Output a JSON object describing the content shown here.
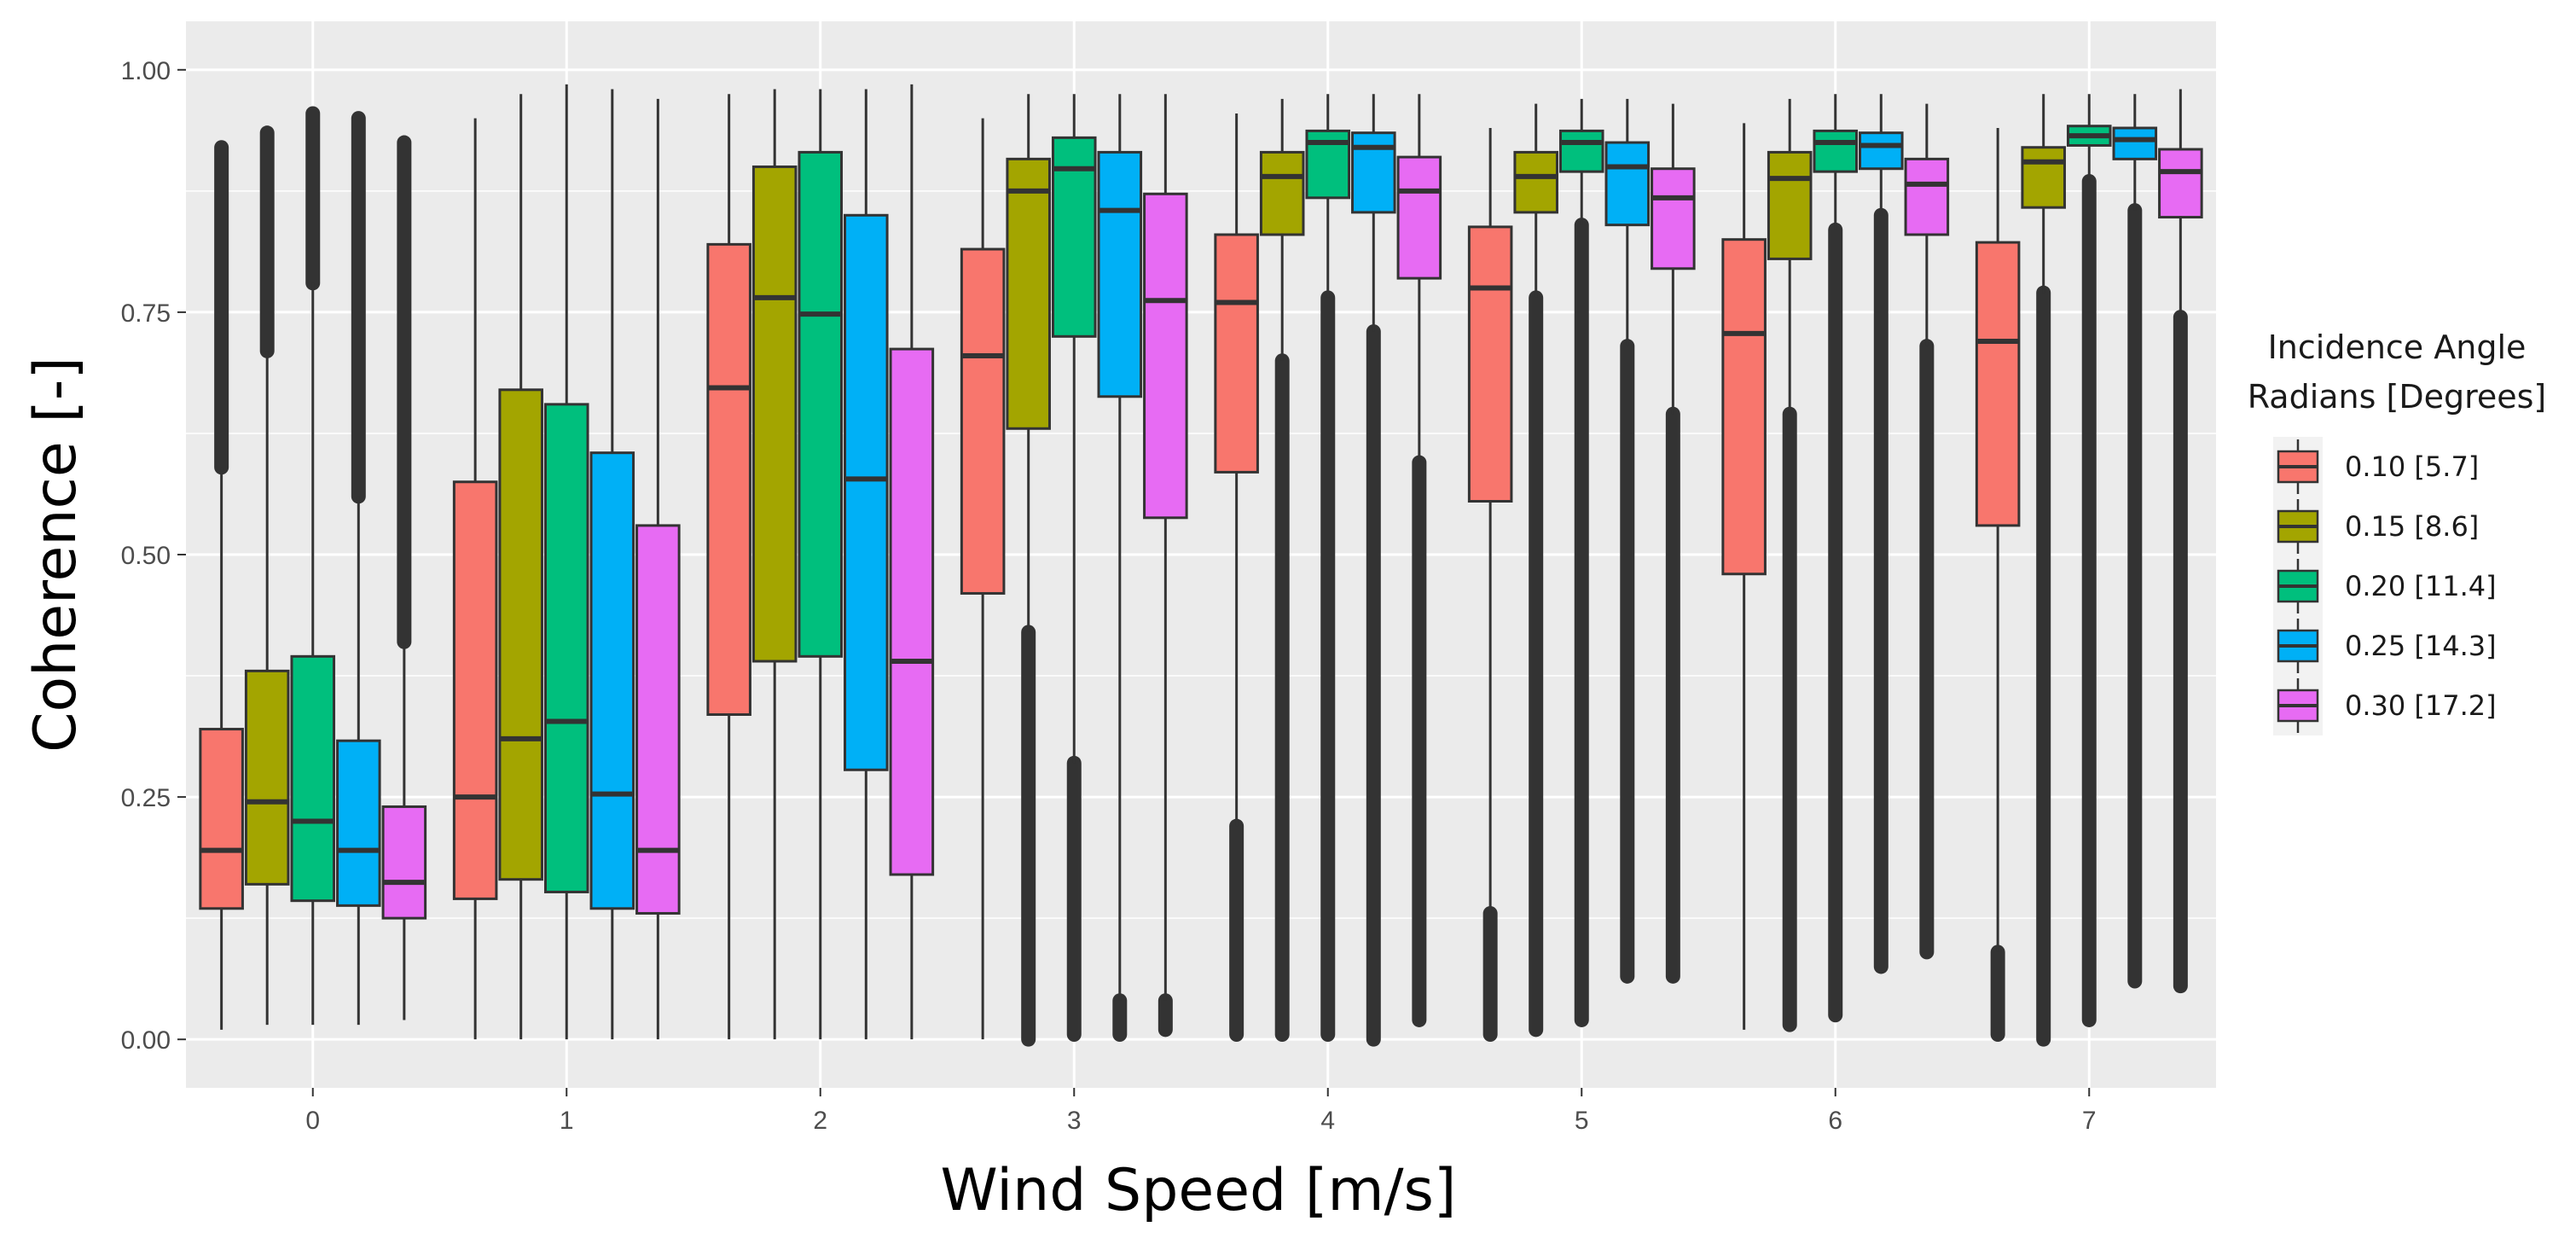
{
  "chart_data": {
    "type": "boxplot",
    "title": "",
    "xlabel": "Wind Speed [m/s]",
    "ylabel": "Coherence [-]",
    "ylim": [
      -0.05,
      1.05
    ],
    "y_ticks": [
      "0.00",
      "0.25",
      "0.50",
      "0.75",
      "1.00"
    ],
    "y_tick_values": [
      0,
      0.25,
      0.5,
      0.75,
      1.0
    ],
    "categories": [
      "0",
      "1",
      "2",
      "3",
      "4",
      "5",
      "6",
      "7"
    ],
    "grid": true,
    "legend": {
      "title_line1": "Incidence Angle",
      "title_line2": "Radians [Degrees]",
      "position": "right"
    },
    "colors": {
      "panel_bg": "#ebebeb",
      "grid": "#ffffff",
      "box_outline": "#333333",
      "outlier": "#333333"
    },
    "series": [
      {
        "name": "0.10 [5.7]",
        "color": "#F8766D",
        "boxes": [
          {
            "min": 0.01,
            "q1": 0.135,
            "median": 0.195,
            "q3": 0.32,
            "max": 0.59,
            "outliers_from": 0.59,
            "outliers_to": 0.92
          },
          {
            "min": 0.0,
            "q1": 0.145,
            "median": 0.25,
            "q3": 0.575,
            "max": 0.95
          },
          {
            "min": 0.0,
            "q1": 0.335,
            "median": 0.672,
            "q3": 0.82,
            "max": 0.975
          },
          {
            "min": 0.0,
            "q1": 0.46,
            "median": 0.705,
            "q3": 0.815,
            "max": 0.95
          },
          {
            "min": 0.22,
            "q1": 0.585,
            "median": 0.76,
            "q3": 0.83,
            "max": 0.955,
            "outliers_from": 0.005,
            "outliers_to": 0.22
          },
          {
            "min": 0.13,
            "q1": 0.555,
            "median": 0.775,
            "q3": 0.838,
            "max": 0.94,
            "outliers_from": 0.005,
            "outliers_to": 0.13
          },
          {
            "min": 0.01,
            "q1": 0.48,
            "median": 0.728,
            "q3": 0.825,
            "max": 0.945
          },
          {
            "min": 0.09,
            "q1": 0.53,
            "median": 0.72,
            "q3": 0.822,
            "max": 0.94,
            "outliers_from": 0.005,
            "outliers_to": 0.09
          }
        ]
      },
      {
        "name": "0.15 [8.6]",
        "color": "#A3A500",
        "boxes": [
          {
            "min": 0.015,
            "q1": 0.16,
            "median": 0.245,
            "q3": 0.38,
            "max": 0.71,
            "outliers_from": 0.71,
            "outliers_to": 0.935
          },
          {
            "min": 0.0,
            "q1": 0.165,
            "median": 0.31,
            "q3": 0.67,
            "max": 0.975
          },
          {
            "min": 0.0,
            "q1": 0.39,
            "median": 0.765,
            "q3": 0.9,
            "max": 0.98
          },
          {
            "min": 0.42,
            "q1": 0.63,
            "median": 0.875,
            "q3": 0.908,
            "max": 0.975,
            "outliers_from": 0.0,
            "outliers_to": 0.42
          },
          {
            "min": 0.7,
            "q1": 0.83,
            "median": 0.89,
            "q3": 0.915,
            "max": 0.97,
            "outliers_from": 0.005,
            "outliers_to": 0.7
          },
          {
            "min": 0.765,
            "q1": 0.853,
            "median": 0.89,
            "q3": 0.915,
            "max": 0.965,
            "outliers_from": 0.01,
            "outliers_to": 0.765
          },
          {
            "min": 0.645,
            "q1": 0.805,
            "median": 0.888,
            "q3": 0.915,
            "max": 0.97,
            "outliers_from": 0.015,
            "outliers_to": 0.645
          },
          {
            "min": 0.77,
            "q1": 0.858,
            "median": 0.905,
            "q3": 0.92,
            "max": 0.975,
            "outliers_from": 0.0,
            "outliers_to": 0.77
          }
        ]
      },
      {
        "name": "0.20 [11.4]",
        "color": "#00BF7D",
        "boxes": [
          {
            "min": 0.015,
            "q1": 0.143,
            "median": 0.225,
            "q3": 0.395,
            "max": 0.78,
            "outliers_from": 0.78,
            "outliers_to": 0.955
          },
          {
            "min": 0.0,
            "q1": 0.152,
            "median": 0.328,
            "q3": 0.655,
            "max": 0.985
          },
          {
            "min": 0.0,
            "q1": 0.395,
            "median": 0.748,
            "q3": 0.915,
            "max": 0.98
          },
          {
            "min": 0.285,
            "q1": 0.725,
            "median": 0.898,
            "q3": 0.93,
            "max": 0.975,
            "outliers_from": 0.005,
            "outliers_to": 0.285
          },
          {
            "min": 0.765,
            "q1": 0.868,
            "median": 0.925,
            "q3": 0.937,
            "max": 0.975,
            "outliers_from": 0.005,
            "outliers_to": 0.765
          },
          {
            "min": 0.84,
            "q1": 0.895,
            "median": 0.925,
            "q3": 0.937,
            "max": 0.97,
            "outliers_from": 0.02,
            "outliers_to": 0.84
          },
          {
            "min": 0.835,
            "q1": 0.895,
            "median": 0.925,
            "q3": 0.937,
            "max": 0.975,
            "outliers_from": 0.025,
            "outliers_to": 0.835
          },
          {
            "min": 0.885,
            "q1": 0.922,
            "median": 0.932,
            "q3": 0.942,
            "max": 0.975,
            "outliers_from": 0.02,
            "outliers_to": 0.885
          }
        ]
      },
      {
        "name": "0.25 [14.3]",
        "color": "#00B0F6",
        "boxes": [
          {
            "min": 0.015,
            "q1": 0.138,
            "median": 0.195,
            "q3": 0.308,
            "max": 0.56,
            "outliers_from": 0.56,
            "outliers_to": 0.95
          },
          {
            "min": 0.0,
            "q1": 0.135,
            "median": 0.253,
            "q3": 0.605,
            "max": 0.98
          },
          {
            "min": 0.0,
            "q1": 0.278,
            "median": 0.578,
            "q3": 0.85,
            "max": 0.98
          },
          {
            "min": 0.04,
            "q1": 0.663,
            "median": 0.855,
            "q3": 0.915,
            "max": 0.975,
            "outliers_from": 0.005,
            "outliers_to": 0.04
          },
          {
            "min": 0.73,
            "q1": 0.853,
            "median": 0.92,
            "q3": 0.935,
            "max": 0.975,
            "outliers_from": 0.0,
            "outliers_to": 0.73
          },
          {
            "min": 0.715,
            "q1": 0.84,
            "median": 0.9,
            "q3": 0.925,
            "max": 0.97,
            "outliers_from": 0.065,
            "outliers_to": 0.715
          },
          {
            "min": 0.85,
            "q1": 0.898,
            "median": 0.922,
            "q3": 0.935,
            "max": 0.975,
            "outliers_from": 0.075,
            "outliers_to": 0.85
          },
          {
            "min": 0.855,
            "q1": 0.908,
            "median": 0.928,
            "q3": 0.94,
            "max": 0.975,
            "outliers_from": 0.06,
            "outliers_to": 0.855
          }
        ]
      },
      {
        "name": "0.30 [17.2]",
        "color": "#E76BF3",
        "boxes": [
          {
            "min": 0.02,
            "q1": 0.125,
            "median": 0.162,
            "q3": 0.24,
            "max": 0.41,
            "outliers_from": 0.41,
            "outliers_to": 0.925
          },
          {
            "min": 0.0,
            "q1": 0.13,
            "median": 0.195,
            "q3": 0.53,
            "max": 0.97
          },
          {
            "min": 0.0,
            "q1": 0.17,
            "median": 0.39,
            "q3": 0.712,
            "max": 0.985
          },
          {
            "min": 0.04,
            "q1": 0.538,
            "median": 0.762,
            "q3": 0.872,
            "max": 0.975,
            "outliers_from": 0.01,
            "outliers_to": 0.04
          },
          {
            "min": 0.595,
            "q1": 0.785,
            "median": 0.875,
            "q3": 0.91,
            "max": 0.975,
            "outliers_from": 0.02,
            "outliers_to": 0.595
          },
          {
            "min": 0.645,
            "q1": 0.795,
            "median": 0.868,
            "q3": 0.898,
            "max": 0.965,
            "outliers_from": 0.065,
            "outliers_to": 0.645
          },
          {
            "min": 0.715,
            "q1": 0.83,
            "median": 0.882,
            "q3": 0.908,
            "max": 0.965,
            "outliers_from": 0.09,
            "outliers_to": 0.715
          },
          {
            "min": 0.745,
            "q1": 0.848,
            "median": 0.895,
            "q3": 0.918,
            "max": 0.98,
            "outliers_from": 0.055,
            "outliers_to": 0.745
          }
        ]
      }
    ]
  }
}
